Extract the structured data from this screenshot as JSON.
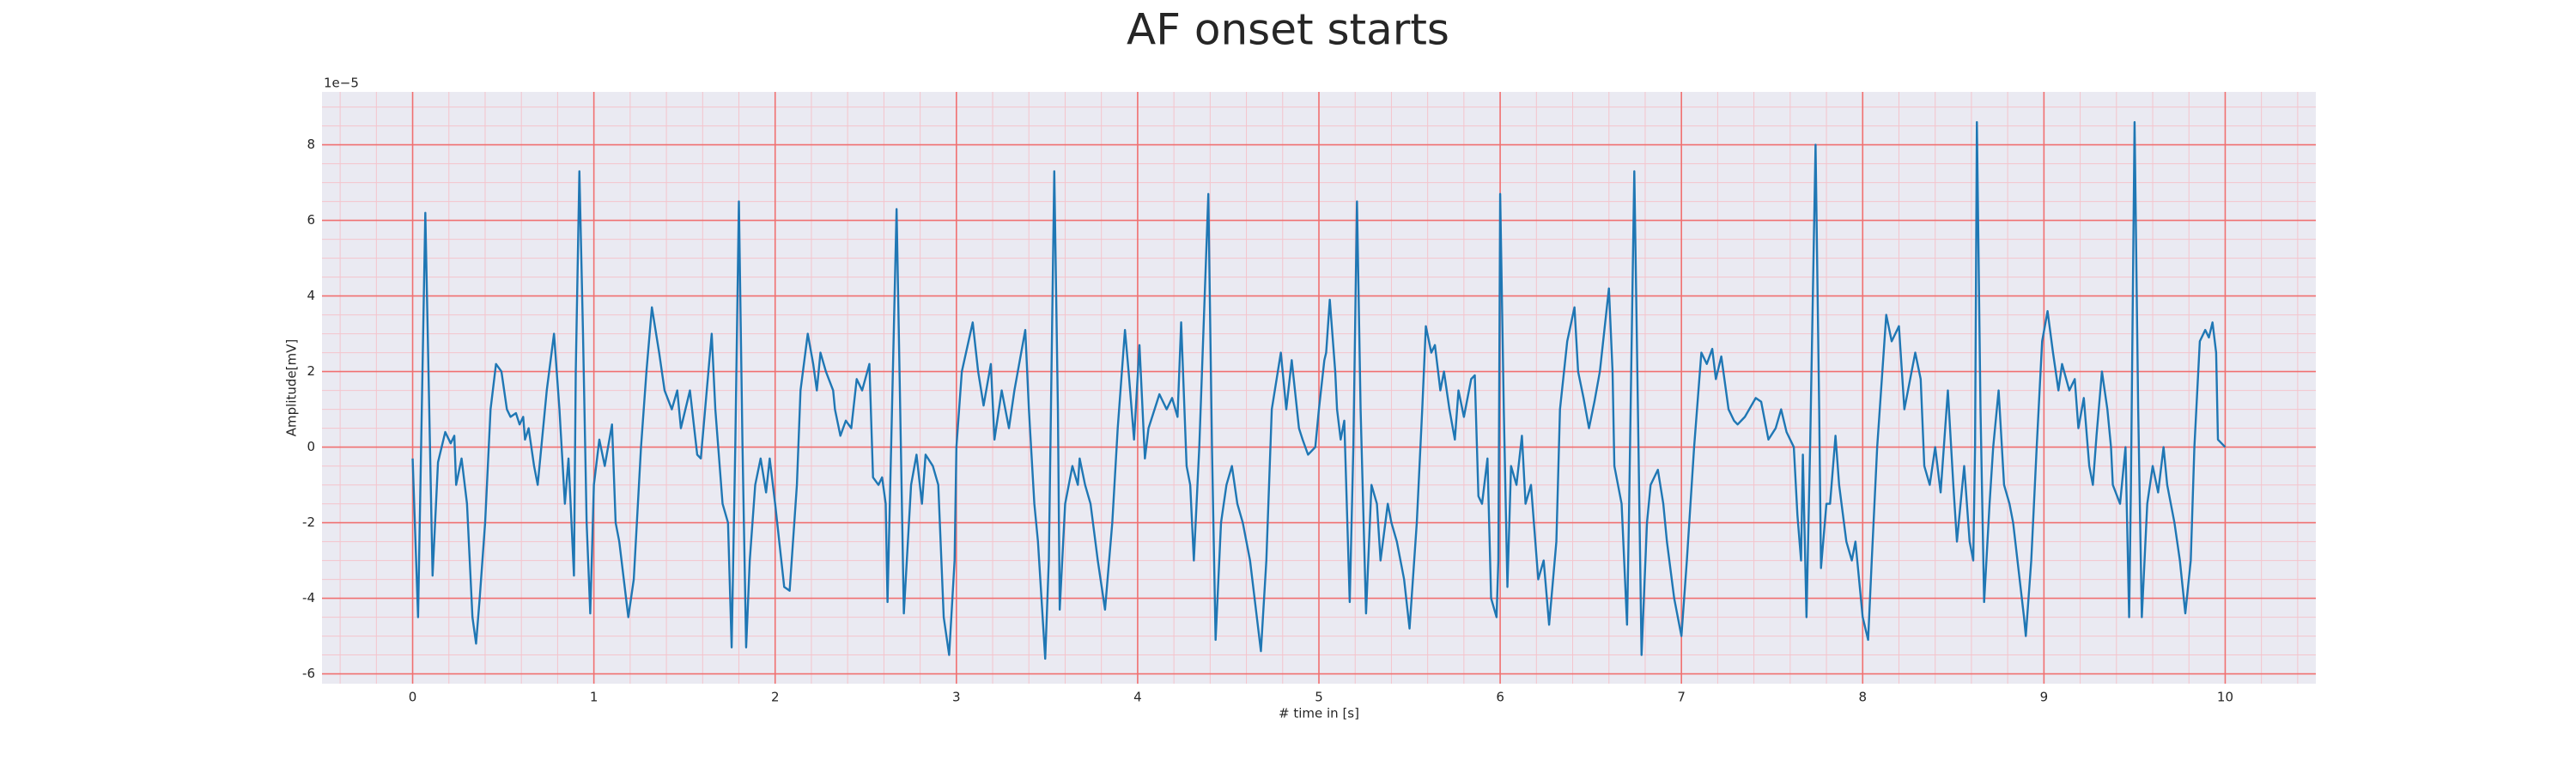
{
  "chart_data": {
    "type": "line",
    "title": "AF onset starts",
    "x_label": "# time in [s]",
    "y_label": "Amplitude[mV]",
    "y_offset_text": "1e−5",
    "color": "#1f77b4",
    "background": "#eaeaf2",
    "grid": true,
    "grid_color": "#f07070",
    "minor_grid_color": "#f4c4cc",
    "xlim": [
      -0.5,
      10.5
    ],
    "ylim": [
      -6.26,
      9.4
    ],
    "xticks": [
      0,
      1,
      2,
      3,
      4,
      5,
      6,
      7,
      8,
      9,
      10
    ],
    "yticks": [
      -6,
      -4,
      -2,
      0,
      2,
      4,
      6,
      8
    ],
    "minor_xticks": [
      -0.4,
      -0.2,
      0.2,
      0.4,
      0.6,
      0.8,
      1.2,
      1.4,
      1.6,
      1.8,
      2.2,
      2.4,
      2.6,
      2.8,
      3.2,
      3.4,
      3.6,
      3.8,
      4.2,
      4.4,
      4.6,
      4.8,
      5.2,
      5.4,
      5.6,
      5.8,
      6.2,
      6.4,
      6.6,
      6.8,
      7.2,
      7.4,
      7.6,
      7.8,
      8.2,
      8.4,
      8.6,
      8.8,
      9.2,
      9.4,
      9.6,
      9.8,
      10.2,
      10.4
    ],
    "minor_yticks": [
      -5.5,
      -5,
      -4.5,
      -3.5,
      -3,
      -2.5,
      -1.5,
      -1,
      -0.5,
      0.5,
      1,
      1.5,
      2.5,
      3,
      3.5,
      4.5,
      5,
      5.5,
      6.5,
      7,
      7.5,
      8.5,
      9
    ],
    "x": [
      0.0,
      0.03,
      0.07,
      0.11,
      0.14,
      0.18,
      0.21,
      0.23,
      0.24,
      0.27,
      0.3,
      0.33,
      0.35,
      0.37,
      0.4,
      0.43,
      0.46,
      0.49,
      0.52,
      0.54,
      0.57,
      0.59,
      0.61,
      0.62,
      0.64,
      0.67,
      0.69,
      0.71,
      0.74,
      0.78,
      0.81,
      0.84,
      0.86,
      0.89,
      0.9,
      0.92,
      0.94,
      0.96,
      0.98,
      1.0,
      1.03,
      1.06,
      1.1,
      1.12,
      1.14,
      1.19,
      1.22,
      1.26,
      1.29,
      1.32,
      1.36,
      1.39,
      1.43,
      1.46,
      1.48,
      1.53,
      1.57,
      1.59,
      1.65,
      1.67,
      1.71,
      1.74,
      1.76,
      1.78,
      1.8,
      1.82,
      1.84,
      1.86,
      1.89,
      1.92,
      1.95,
      1.97,
      2.0,
      2.05,
      2.08,
      2.12,
      2.14,
      2.18,
      2.21,
      2.23,
      2.25,
      2.28,
      2.32,
      2.33,
      2.36,
      2.39,
      2.42,
      2.45,
      2.48,
      2.52,
      2.54,
      2.57,
      2.59,
      2.61,
      2.62,
      2.64,
      2.67,
      2.69,
      2.71,
      2.75,
      2.78,
      2.81,
      2.83,
      2.87,
      2.9,
      2.93,
      2.96,
      2.99,
      3.0,
      3.03,
      3.09,
      3.12,
      3.15,
      3.19,
      3.21,
      3.25,
      3.29,
      3.32,
      3.38,
      3.4,
      3.43,
      3.45,
      3.49,
      3.51,
      3.54,
      3.56,
      3.57,
      3.6,
      3.64,
      3.67,
      3.68,
      3.71,
      3.74,
      3.78,
      3.82,
      3.86,
      3.89,
      3.93,
      3.95,
      3.98,
      4.01,
      4.04,
      4.06,
      4.12,
      4.16,
      4.19,
      4.22,
      4.24,
      4.27,
      4.29,
      4.31,
      4.34,
      4.39,
      4.41,
      4.43,
      4.46,
      4.49,
      4.52,
      4.55,
      4.58,
      4.62,
      4.68,
      4.71,
      4.74,
      4.79,
      4.82,
      4.85,
      4.89,
      4.91,
      4.94,
      4.98,
      5.0,
      5.03,
      5.04,
      5.06,
      5.09,
      5.1,
      5.12,
      5.14,
      5.17,
      5.19,
      5.21,
      5.23,
      5.26,
      5.29,
      5.32,
      5.34,
      5.38,
      5.4,
      5.43,
      5.47,
      5.5,
      5.54,
      5.57,
      5.59,
      5.62,
      5.64,
      5.67,
      5.69,
      5.72,
      5.75,
      5.77,
      5.8,
      5.84,
      5.86,
      5.88,
      5.9,
      5.93,
      5.95,
      5.98,
      5.99,
      6.0,
      6.02,
      6.04,
      6.06,
      6.09,
      6.12,
      6.14,
      6.17,
      6.21,
      6.24,
      6.27,
      6.31,
      6.33,
      6.37,
      6.41,
      6.43,
      6.46,
      6.49,
      6.52,
      6.55,
      6.6,
      6.62,
      6.63,
      6.65,
      6.67,
      6.7,
      6.71,
      6.74,
      6.76,
      6.78,
      6.81,
      6.83,
      6.87,
      6.9,
      6.92,
      6.96,
      7.0,
      7.03,
      7.07,
      7.11,
      7.14,
      7.17,
      7.19,
      7.22,
      7.26,
      7.29,
      7.31,
      7.35,
      7.41,
      7.44,
      7.48,
      7.52,
      7.55,
      7.58,
      7.62,
      7.64,
      7.66,
      7.67,
      7.69,
      7.71,
      7.74,
      7.76,
      7.77,
      7.8,
      7.82,
      7.85,
      7.87,
      7.91,
      7.94,
      7.96,
      8.0,
      8.03,
      8.05,
      8.08,
      8.13,
      8.16,
      8.2,
      8.23,
      8.25,
      8.29,
      8.32,
      8.34,
      8.37,
      8.4,
      8.43,
      8.47,
      8.5,
      8.52,
      8.56,
      8.59,
      8.61,
      8.62,
      8.63,
      8.65,
      8.67,
      8.7,
      8.72,
      8.75,
      8.78,
      8.81,
      8.83,
      8.89,
      8.9,
      8.93,
      8.96,
      8.99,
      9.02,
      9.05,
      9.08,
      9.1,
      9.14,
      9.17,
      9.19,
      9.22,
      9.25,
      9.27,
      9.29,
      9.32,
      9.35,
      9.37,
      9.38,
      9.42,
      9.45,
      9.47,
      9.48,
      9.5,
      9.52,
      9.54,
      9.57,
      9.6,
      9.63,
      9.66,
      9.68,
      9.72,
      9.75,
      9.78,
      9.81,
      9.83,
      9.86,
      9.89,
      9.91,
      9.93,
      9.95,
      9.96,
      9.98,
      10.0
    ],
    "values": [
      -0.3,
      -4.5,
      6.2,
      -3.4,
      -0.4,
      0.4,
      0.1,
      0.3,
      -1,
      -0.3,
      -1.5,
      -4.5,
      -5.2,
      -4,
      -2,
      1,
      2.2,
      2,
      1,
      0.8,
      0.9,
      0.6,
      0.8,
      0.2,
      0.5,
      -0.5,
      -1,
      0,
      1.5,
      3,
      1,
      -1.5,
      -0.3,
      -3.4,
      2,
      7.3,
      3,
      -2,
      -4.4,
      -1,
      0.2,
      -0.5,
      0.6,
      -2,
      -2.5,
      -4.5,
      -3.5,
      0,
      2,
      3.7,
      2.5,
      1.5,
      1,
      1.5,
      0.5,
      1.5,
      -0.2,
      -0.3,
      3,
      1,
      -1.5,
      -2,
      -5.3,
      0,
      6.5,
      0,
      -5.3,
      -3,
      -1,
      -0.3,
      -1.2,
      -0.3,
      -1.5,
      -3.7,
      -3.8,
      -1,
      1.5,
      3,
      2.2,
      1.5,
      2.5,
      2,
      1.5,
      1,
      0.3,
      0.7,
      0.5,
      1.8,
      1.5,
      2.2,
      -0.8,
      -1,
      -0.8,
      -1.5,
      -4.1,
      0,
      6.3,
      1,
      -4.4,
      -1,
      -0.2,
      -1.5,
      -0.2,
      -0.5,
      -1,
      -4.5,
      -5.5,
      -3,
      0,
      2,
      3.3,
      2,
      1.1,
      2.2,
      0.2,
      1.5,
      0.5,
      1.5,
      3.1,
      1,
      -1.5,
      -2.5,
      -5.6,
      -3,
      7.3,
      1,
      -4.3,
      -1.5,
      -0.5,
      -1,
      -0.3,
      -1,
      -1.5,
      -3,
      -4.3,
      -2,
      0.5,
      3.1,
      2,
      0.2,
      2.7,
      -0.3,
      0.5,
      1.4,
      1,
      1.3,
      0.8,
      3.3,
      -0.5,
      -1,
      -3,
      0,
      6.7,
      0,
      -5.1,
      -2,
      -1,
      -0.5,
      -1.5,
      -2,
      -3,
      -5.4,
      -3,
      1,
      2.5,
      1,
      2.3,
      0.5,
      0.2,
      -0.2,
      0,
      1,
      2.3,
      2.5,
      3.9,
      2,
      1,
      0.2,
      0.7,
      -4.1,
      0,
      6.5,
      1,
      -4.4,
      -1,
      -1.5,
      -3,
      -1.5,
      -2,
      -2.5,
      -3.5,
      -4.8,
      -2,
      1,
      3.2,
      2.5,
      2.7,
      1.5,
      2,
      1,
      0.2,
      1.5,
      0.8,
      1.8,
      1.9,
      -1.3,
      -1.5,
      -0.3,
      -4,
      -4.5,
      -3,
      6.7,
      1,
      -3.7,
      -0.5,
      -1,
      0.3,
      -1.5,
      -1,
      -3.5,
      -3,
      -4.7,
      -2.5,
      1,
      2.8,
      3.7,
      2,
      1.3,
      0.5,
      1.2,
      2,
      4.2,
      2,
      -0.5,
      -1,
      -1.5,
      -4.7,
      -2,
      7.3,
      1,
      -5.5,
      -2,
      -1,
      -0.6,
      -1.5,
      -2.5,
      -4,
      -5,
      -3,
      0,
      2.5,
      2.2,
      2.6,
      1.8,
      2.4,
      1,
      0.7,
      0.6,
      0.8,
      1.3,
      1.2,
      0.2,
      0.5,
      1,
      0.4,
      0,
      -1.8,
      -3,
      -0.2,
      -4.5,
      0,
      8,
      1,
      -3.2,
      -1.5,
      -1.5,
      0.3,
      -1,
      -2.5,
      -3,
      -2.5,
      -4.5,
      -5.1,
      -3,
      0,
      3.5,
      2.8,
      3.2,
      1,
      1.5,
      2.5,
      1.8,
      -0.5,
      -1,
      0,
      -1.2,
      1.5,
      -1,
      -2.5,
      -0.5,
      -2.5,
      -3,
      0,
      8.6,
      1,
      -4.1,
      -1.5,
      0,
      1.5,
      -1,
      -1.5,
      -2,
      -4.5,
      -5,
      -3,
      0,
      2.8,
      3.6,
      2.5,
      1.5,
      2.2,
      1.5,
      1.8,
      0.5,
      1.3,
      -0.5,
      -1,
      0.3,
      2,
      1,
      0,
      -1,
      -1.5,
      0,
      -4.5,
      -1,
      8.6,
      1,
      -4.5,
      -1.5,
      -0.5,
      -1.2,
      0,
      -1,
      -2,
      -3,
      -4.4,
      -3,
      0,
      2.8,
      3.1,
      2.9,
      3.3,
      2.5,
      0.2,
      0.1,
      0
    ]
  }
}
